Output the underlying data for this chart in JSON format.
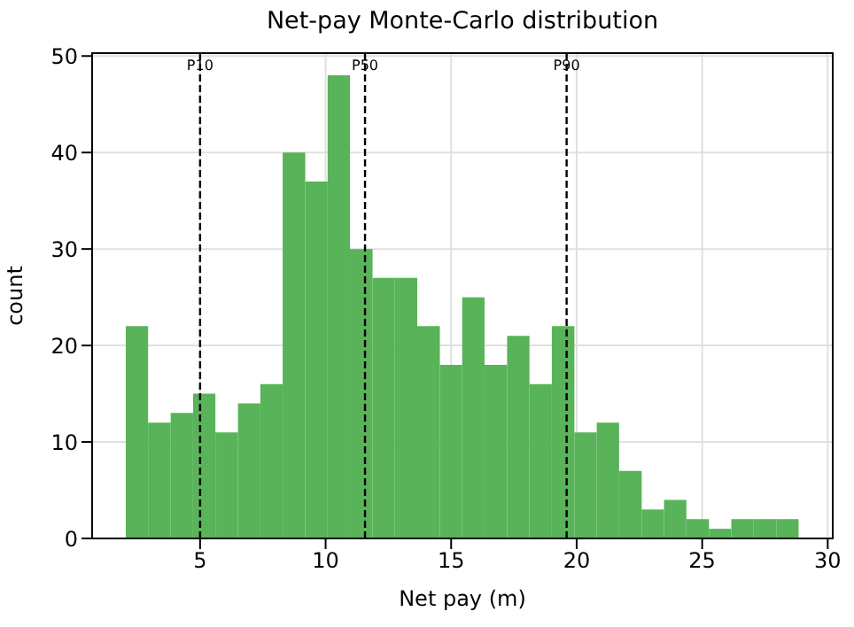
{
  "chart_data": {
    "type": "histogram",
    "title": "Net-pay Monte-Carlo distribution",
    "xlabel": "Net pay (m)",
    "ylabel": "count",
    "bins": [
      2.04,
      2.93,
      3.83,
      4.72,
      5.61,
      6.51,
      7.4,
      8.29,
      9.19,
      10.08,
      10.97,
      11.87,
      12.76,
      13.65,
      14.55,
      15.44,
      16.33,
      17.23,
      18.12,
      19.01,
      19.91,
      20.8,
      21.69,
      22.59,
      23.48,
      24.37,
      25.27,
      26.16,
      27.05,
      27.95,
      28.84
    ],
    "values": [
      22,
      12,
      13,
      15,
      11,
      14,
      16,
      40,
      37,
      48,
      30,
      27,
      27,
      22,
      18,
      25,
      18,
      21,
      16,
      22,
      11,
      12,
      7,
      3,
      4,
      2,
      1,
      2,
      2,
      2
    ],
    "color": "#58b359",
    "xlim": [
      0.7,
      30.2
    ],
    "xticks": [
      5,
      10,
      15,
      20,
      25,
      30
    ],
    "ylim": [
      0,
      50.3
    ],
    "yticks": [
      0,
      10,
      20,
      30,
      40,
      50
    ],
    "grid": true,
    "ref_lines": [
      {
        "axis": "x",
        "value": 5.0,
        "label": "P10",
        "color": "#000000",
        "line_style": "dashed"
      },
      {
        "axis": "x",
        "value": 11.57,
        "label": "P50",
        "color": "#000000",
        "line_style": "dashed"
      },
      {
        "axis": "x",
        "value": 19.6,
        "label": "P90",
        "color": "#000000",
        "line_style": "dashed"
      }
    ]
  }
}
